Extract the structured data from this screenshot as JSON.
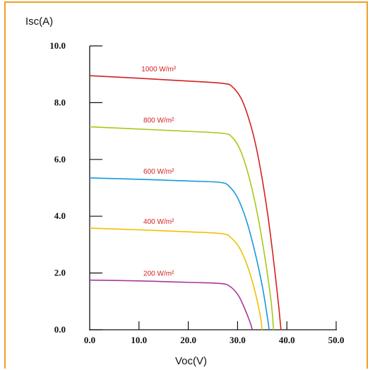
{
  "chart_data": {
    "type": "line",
    "title": "",
    "ylabel": "Isc(A)",
    "xlabel": "Voc(V)",
    "xlim": [
      0,
      50
    ],
    "ylim": [
      0,
      10
    ],
    "x_ticks": [
      "0.0",
      "10.0",
      "20.0",
      "30.0",
      "40.0",
      "50.0"
    ],
    "y_ticks": [
      "0.0",
      "2.0",
      "4.0",
      "6.0",
      "8.0",
      "10.0"
    ],
    "grid": false,
    "legend": "inline labels above each curve",
    "label_color": "#d42020",
    "frame_color": "#f0a020",
    "series": [
      {
        "name": "1000 W/m²",
        "color": "#d42020",
        "points": [
          [
            0,
            8.95
          ],
          [
            10,
            8.86
          ],
          [
            20,
            8.76
          ],
          [
            27,
            8.68
          ],
          [
            29,
            8.55
          ],
          [
            31,
            8.05
          ],
          [
            33,
            7.0
          ],
          [
            34.5,
            5.8
          ],
          [
            36,
            4.2
          ],
          [
            37.2,
            2.6
          ],
          [
            38.3,
            0.9
          ],
          [
            38.8,
            0.0
          ]
        ]
      },
      {
        "name": "800 W/m²",
        "color": "#a8c818",
        "points": [
          [
            0,
            7.15
          ],
          [
            10,
            7.07
          ],
          [
            20,
            6.99
          ],
          [
            27,
            6.92
          ],
          [
            28.8,
            6.8
          ],
          [
            30.5,
            6.35
          ],
          [
            32.3,
            5.4
          ],
          [
            34,
            4.1
          ],
          [
            35.5,
            2.6
          ],
          [
            36.8,
            1.0
          ],
          [
            37.3,
            0.0
          ]
        ]
      },
      {
        "name": "600 W/m²",
        "color": "#1898d8",
        "points": [
          [
            0,
            5.35
          ],
          [
            10,
            5.3
          ],
          [
            20,
            5.24
          ],
          [
            26.5,
            5.19
          ],
          [
            28.3,
            5.05
          ],
          [
            30,
            4.65
          ],
          [
            31.8,
            3.85
          ],
          [
            33.5,
            2.75
          ],
          [
            35,
            1.55
          ],
          [
            36,
            0.5
          ],
          [
            36.4,
            0.0
          ]
        ]
      },
      {
        "name": "400 W/m²",
        "color": "#f0c000",
        "points": [
          [
            0,
            3.58
          ],
          [
            10,
            3.52
          ],
          [
            20,
            3.45
          ],
          [
            27,
            3.38
          ],
          [
            28.8,
            3.22
          ],
          [
            30.5,
            2.85
          ],
          [
            32.2,
            2.15
          ],
          [
            33.6,
            1.3
          ],
          [
            34.6,
            0.5
          ],
          [
            35.0,
            0.0
          ]
        ]
      },
      {
        "name": "200 W/m²",
        "color": "#a83898",
        "points": [
          [
            0,
            1.75
          ],
          [
            10,
            1.72
          ],
          [
            20,
            1.67
          ],
          [
            26.5,
            1.63
          ],
          [
            28.5,
            1.52
          ],
          [
            30.2,
            1.2
          ],
          [
            31.5,
            0.72
          ],
          [
            32.5,
            0.28
          ],
          [
            33.0,
            0.0
          ]
        ]
      }
    ],
    "series_label_anchor_x": [
      14,
      14,
      14,
      14,
      14
    ]
  }
}
